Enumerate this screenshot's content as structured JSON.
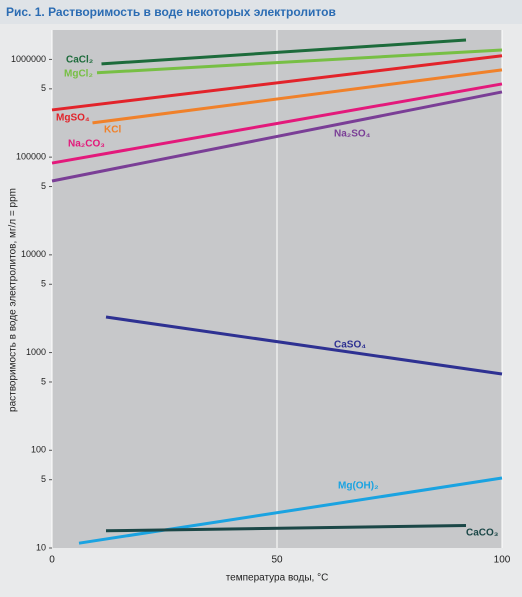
{
  "chart_data": {
    "type": "line",
    "title": "Рис. 1. Растворимость в воде некоторых электролитов",
    "x_label": "температура воды, °C",
    "y_label": "растворимость в воде электролитов, мг/л = ppm",
    "log_y": true,
    "grid": "x",
    "xlim": [
      0,
      100
    ],
    "xticks": [
      0,
      50,
      100
    ],
    "ylim": [
      10,
      2000000
    ],
    "yticks": [
      10,
      {
        "value": 50,
        "label": "5"
      },
      100,
      {
        "value": 500,
        "label": "5"
      },
      1000,
      {
        "value": 5000,
        "label": "5"
      },
      10000,
      {
        "value": 50000,
        "label": "5"
      },
      100000,
      {
        "value": 500000,
        "label": "5"
      },
      1000000
    ],
    "series": [
      {
        "name": "CaCl₂",
        "color": "#1d6b3b",
        "x": [
          11,
          92
        ],
        "values": [
          900000,
          1580000
        ]
      },
      {
        "name": "MgCl₂",
        "color": "#77bf44",
        "x": [
          10,
          100
        ],
        "values": [
          730000,
          1250000
        ]
      },
      {
        "name": "MgSO₄",
        "color": "#e2232a",
        "x": [
          0,
          100
        ],
        "values": [
          304000,
          1090000
        ]
      },
      {
        "name": "KCl",
        "color": "#f0812a",
        "x": [
          9,
          100
        ],
        "values": [
          224000,
          782000
        ]
      },
      {
        "name": "Na₂CO₃",
        "color": "#e3197b",
        "x": [
          0,
          100
        ],
        "values": [
          87000,
          561000
        ]
      },
      {
        "name": "Na₂SO₄",
        "color": "#7a3e96",
        "x": [
          0,
          100
        ],
        "values": [
          57000,
          465000
        ]
      },
      {
        "name": "CaSO₄",
        "color": "#2e3192",
        "x": [
          12,
          100
        ],
        "values": [
          2310,
          604
        ]
      },
      {
        "name": "Mg(OH)₂",
        "color": "#1aa3e1",
        "x": [
          6,
          100
        ],
        "values": [
          11.2,
          52
        ]
      },
      {
        "name": "CaCO₃",
        "color": "#1b4747",
        "x": [
          12,
          92
        ],
        "values": [
          15,
          17
        ]
      }
    ]
  }
}
